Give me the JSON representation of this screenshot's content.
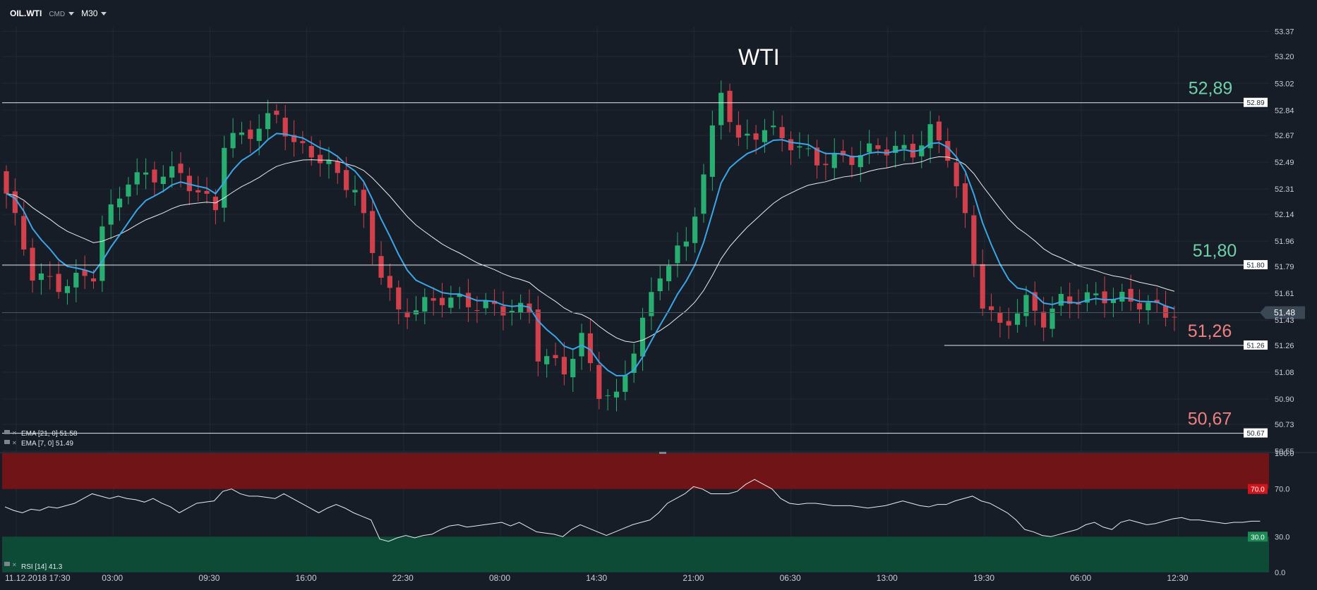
{
  "toolbar": {
    "symbol": "OIL.WTI",
    "market_type": "CMD",
    "timeframe": "M30"
  },
  "chart_data": {
    "type": "candlestick",
    "title": "WTI",
    "yticks": [
      53.37,
      53.2,
      53.02,
      52.84,
      52.67,
      52.49,
      52.31,
      52.14,
      51.96,
      51.79,
      51.61,
      51.43,
      51.26,
      51.08,
      50.9,
      50.73,
      50.55
    ],
    "ylim": [
      50.55,
      53.4
    ],
    "xlabels": [
      "11.12.2018  17:30",
      "03:00",
      "09:30",
      "16:00",
      "22:30",
      "08:00",
      "14:30",
      "21:00",
      "06:30",
      "13:00",
      "19:30",
      "06:00",
      "12:30"
    ],
    "current_price": "51.48",
    "levels": [
      {
        "value": "52.89",
        "label": "52,89",
        "color": "#6fd0a8"
      },
      {
        "value": "51.80",
        "label": "51,80",
        "color": "#6fd0a8"
      },
      {
        "value": "51.26",
        "label": "51,26",
        "color": "#f08080"
      },
      {
        "value": "50.67",
        "label": "50,67",
        "color": "#f08080"
      }
    ],
    "anchors": [
      [
        0,
        52.28
      ],
      [
        3,
        51.74
      ],
      [
        6,
        51.66
      ],
      [
        10,
        51.74
      ],
      [
        11,
        52.05
      ],
      [
        14,
        52.38
      ],
      [
        20,
        52.42
      ],
      [
        22,
        52.27
      ],
      [
        24,
        52.2
      ],
      [
        25,
        52.62
      ],
      [
        29,
        52.72
      ],
      [
        31,
        52.82
      ],
      [
        33,
        52.6
      ],
      [
        35,
        52.56
      ],
      [
        37,
        52.46
      ],
      [
        40,
        52.3
      ],
      [
        42,
        51.9
      ],
      [
        45,
        51.47
      ],
      [
        50,
        51.58
      ],
      [
        55,
        51.52
      ],
      [
        60,
        51.49
      ],
      [
        61,
        51.2
      ],
      [
        64,
        51.1
      ],
      [
        66,
        51.3
      ],
      [
        68,
        50.95
      ],
      [
        70,
        50.9
      ],
      [
        72,
        51.25
      ],
      [
        75,
        51.75
      ],
      [
        78,
        51.95
      ],
      [
        80,
        52.4
      ],
      [
        82,
        52.98
      ],
      [
        84,
        52.62
      ],
      [
        87,
        52.72
      ],
      [
        90,
        52.62
      ],
      [
        93,
        52.5
      ],
      [
        97,
        52.52
      ],
      [
        100,
        52.59
      ],
      [
        104,
        52.56
      ],
      [
        106,
        52.7
      ],
      [
        108,
        52.55
      ],
      [
        110,
        52.1
      ],
      [
        112,
        51.55
      ],
      [
        114,
        51.38
      ],
      [
        117,
        51.55
      ],
      [
        119,
        51.43
      ],
      [
        121,
        51.56
      ],
      [
        126,
        51.59
      ],
      [
        130,
        51.55
      ],
      [
        133,
        51.48
      ]
    ],
    "ema_21": {
      "name": "EMA [21, 0]",
      "last": "51.58"
    },
    "ema_7": {
      "name": "EMA [7, 0]",
      "last": "51.49"
    },
    "rsi": {
      "name": "RSI [14]",
      "last": "41.3",
      "overbought": "70.0",
      "oversold": "30.0",
      "yticks": [
        "100.0",
        "70.0",
        "30.0",
        "0.0"
      ],
      "values": [
        55,
        52,
        50,
        53,
        52,
        55,
        54,
        56,
        58,
        62,
        66,
        64,
        62,
        64,
        62,
        61,
        59,
        62,
        58,
        55,
        50,
        54,
        58,
        59,
        60,
        68,
        70,
        66,
        64,
        64,
        63,
        62,
        66,
        62,
        58,
        54,
        50,
        54,
        57,
        54,
        50,
        47,
        44,
        28,
        26,
        29,
        31,
        29,
        31,
        32,
        36,
        39,
        40,
        38,
        39,
        40,
        41,
        42,
        39,
        42,
        38,
        34,
        33,
        32,
        30,
        36,
        40,
        37,
        34,
        31,
        34,
        37,
        40,
        42,
        44,
        50,
        58,
        62,
        66,
        72,
        70,
        66,
        66,
        66,
        68,
        74,
        78,
        74,
        70,
        62,
        58,
        57,
        58,
        58,
        57,
        56,
        56,
        56,
        55,
        54,
        55,
        56,
        58,
        60,
        58,
        56,
        55,
        57,
        57,
        60,
        62,
        64,
        60,
        58,
        54,
        50,
        44,
        36,
        34,
        31,
        30,
        32,
        34,
        36,
        40,
        42,
        38,
        36,
        42,
        44,
        42,
        40,
        41,
        43,
        45,
        46,
        44,
        44,
        43,
        42,
        41,
        42,
        42,
        43,
        43
      ]
    }
  }
}
